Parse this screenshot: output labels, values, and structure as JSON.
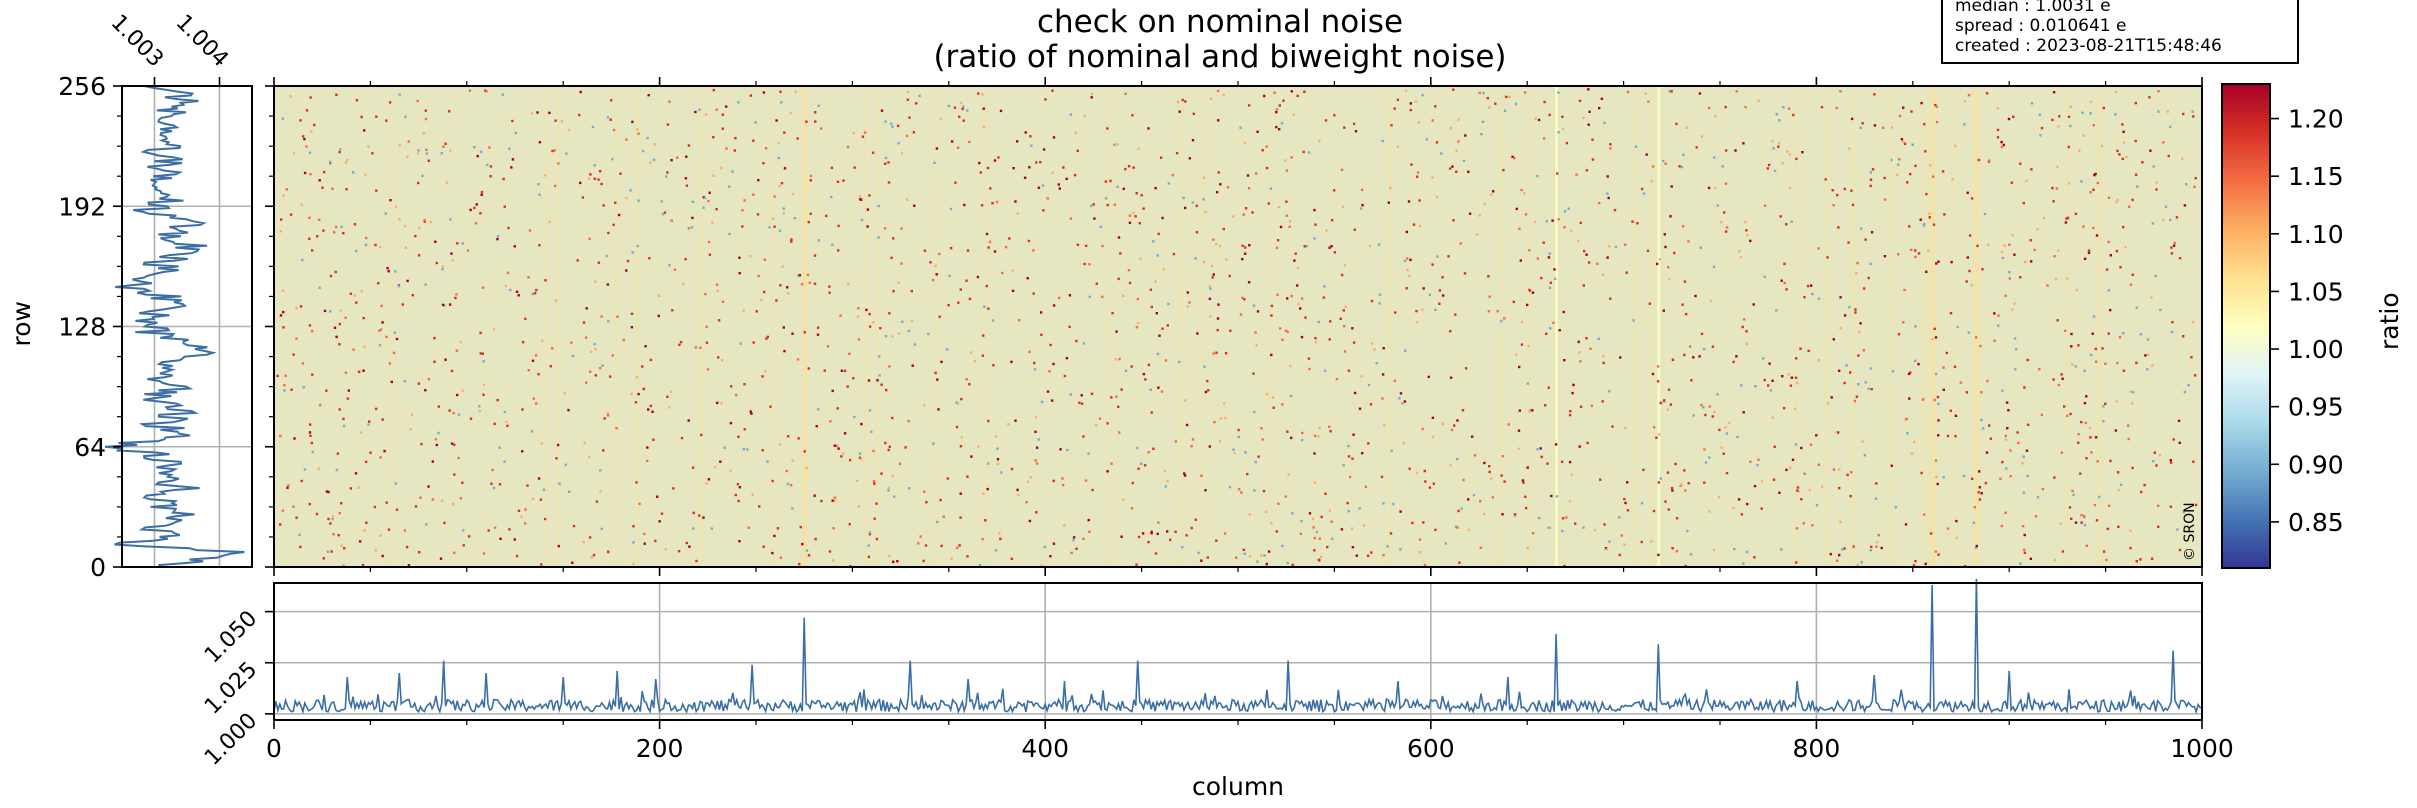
{
  "title": {
    "line1": "check on nominal noise",
    "line2": "(ratio of nominal and biweight noise)"
  },
  "stats": {
    "median": "median : 1.0031 e",
    "spread": "spread : 0.010641 e",
    "created": "created : 2023-08-21T15:48:46"
  },
  "credit": "© SRON",
  "chart_data": [
    {
      "type": "heatmap",
      "name_hint": "main-image",
      "title": "check on nominal noise (ratio of nominal and biweight noise)",
      "xlabel": "column",
      "ylabel": "row",
      "xlim": [
        0,
        1000
      ],
      "ylim": [
        0,
        256
      ],
      "xticks": [
        "0",
        "200",
        "400",
        "600",
        "800",
        "1000"
      ],
      "yticks": [
        "0",
        "64",
        "128",
        "192",
        "256"
      ],
      "background_ratio": 1.0031,
      "bright_columns": [
        {
          "column": 275,
          "ratio": 1.05
        },
        {
          "column": 665,
          "ratio": 1.03
        },
        {
          "column": 718,
          "ratio": 1.03
        },
        {
          "column": 860,
          "ratio": 1.06
        },
        {
          "column": 883,
          "ratio": 1.07
        }
      ],
      "colorbar": {
        "label": "ratio",
        "range": [
          0.81,
          1.23
        ],
        "ticks": [
          "0.85",
          "0.90",
          "0.95",
          "1.00",
          "1.05",
          "1.10",
          "1.15",
          "1.20"
        ],
        "colormap": "RdYlBu_r",
        "colors": [
          "#313695",
          "#4575b4",
          "#74add1",
          "#abd9e9",
          "#e0f3f8",
          "#ffffbf",
          "#fee090",
          "#fdae61",
          "#f46d43",
          "#d73027",
          "#a50026"
        ]
      }
    },
    {
      "type": "line",
      "name_hint": "row-profile",
      "xlim": [
        1.0025,
        1.0045
      ],
      "ylim": [
        0,
        256
      ],
      "xticks": [
        "1.003",
        "1.004"
      ],
      "yticks": [
        "0",
        "64",
        "128",
        "192",
        "256"
      ],
      "grid": true,
      "color": "#3b6ea5",
      "series": [
        {
          "row": [
            0,
            8,
            12,
            16,
            20,
            25,
            30,
            36,
            42,
            48,
            55,
            60,
            64,
            70,
            76,
            82,
            90,
            96,
            104,
            110,
            118,
            124,
            130,
            136,
            142,
            150,
            156,
            162,
            170,
            176,
            184,
            190,
            196,
            204,
            212,
            220,
            230,
            240,
            246,
            256
          ],
          "value": [
            1.0031,
            1.0043,
            1.0023,
            1.0033,
            1.003,
            1.0035,
            1.0032,
            1.003,
            1.0034,
            1.0031,
            1.0033,
            1.003,
            1.0024,
            1.0034,
            1.0031,
            1.0034,
            1.003,
            1.0033,
            1.0029,
            1.0034,
            1.0038,
            1.003,
            1.0028,
            1.0031,
            1.0033,
            1.0026,
            1.0033,
            1.0031,
            1.0036,
            1.0032,
            1.0037,
            1.0029,
            1.0033,
            1.003,
            1.0032,
            1.0031,
            1.0032,
            1.003,
            1.0036,
            1.0031
          ]
        }
      ]
    },
    {
      "type": "line",
      "name_hint": "column-profile",
      "xlabel": "column",
      "xlim": [
        0,
        1000
      ],
      "ylim": [
        0.997,
        1.064
      ],
      "xticks": [
        "0",
        "200",
        "400",
        "600",
        "800",
        "1000"
      ],
      "yticks": [
        "1.000",
        "1.025",
        "1.050"
      ],
      "grid": true,
      "color": "#3b6ea5",
      "baseline": 1.0031,
      "peaks": [
        {
          "column": 38,
          "value": 1.018
        },
        {
          "column": 65,
          "value": 1.02
        },
        {
          "column": 88,
          "value": 1.026
        },
        {
          "column": 110,
          "value": 1.02
        },
        {
          "column": 150,
          "value": 1.018
        },
        {
          "column": 178,
          "value": 1.021
        },
        {
          "column": 198,
          "value": 1.017
        },
        {
          "column": 248,
          "value": 1.024
        },
        {
          "column": 275,
          "value": 1.047
        },
        {
          "column": 330,
          "value": 1.026
        },
        {
          "column": 360,
          "value": 1.017
        },
        {
          "column": 410,
          "value": 1.016
        },
        {
          "column": 448,
          "value": 1.026
        },
        {
          "column": 526,
          "value": 1.026
        },
        {
          "column": 583,
          "value": 1.016
        },
        {
          "column": 640,
          "value": 1.018
        },
        {
          "column": 665,
          "value": 1.039
        },
        {
          "column": 718,
          "value": 1.034
        },
        {
          "column": 790,
          "value": 1.016
        },
        {
          "column": 830,
          "value": 1.019
        },
        {
          "column": 860,
          "value": 1.063
        },
        {
          "column": 883,
          "value": 1.066
        },
        {
          "column": 900,
          "value": 1.021
        },
        {
          "column": 985,
          "value": 1.031
        }
      ]
    }
  ]
}
